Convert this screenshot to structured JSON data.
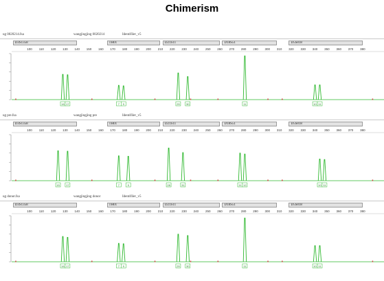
{
  "title": "Chimerism",
  "x_ticks": [
    "100",
    "110",
    "120",
    "130",
    "140",
    "150",
    "160",
    "170",
    "180",
    "190",
    "200",
    "210",
    "220",
    "230",
    "240",
    "250",
    "260",
    "270",
    "280",
    "290",
    "300",
    "310",
    "320",
    "330",
    "340",
    "350",
    "360",
    "370",
    "380"
  ],
  "markers": [
    "D3S1358",
    "TH01",
    "D21S11",
    "D18S51",
    "D5S818"
  ],
  "colors": {
    "trace": "#2eb82e",
    "marker_fill": "#e2e2e2",
    "peak_label_border": "#2eb82e"
  },
  "panels": [
    {
      "sample": "ug 0020214.fsa",
      "user": "wangjingjing 0020214",
      "panel": "Identifiler_v5",
      "peaks": [
        {
          "bp": 128,
          "height": 0.55,
          "label": "16"
        },
        {
          "bp": 132,
          "height": 0.54,
          "label": "17"
        },
        {
          "bp": 175,
          "height": 0.31,
          "label": "7"
        },
        {
          "bp": 179,
          "height": 0.3,
          "label": "9"
        },
        {
          "bp": 225,
          "height": 0.58,
          "label": "29"
        },
        {
          "bp": 233,
          "height": 0.5,
          "label": "30"
        },
        {
          "bp": 281,
          "height": 0.95,
          "label": "11"
        },
        {
          "bp": 340,
          "height": 0.32,
          "label": "10"
        },
        {
          "bp": 344,
          "height": 0.32,
          "label": "11"
        }
      ]
    },
    {
      "sample": "ug pre.fsa",
      "user": "wangjingjing pre",
      "panel": "Identifiler_v5",
      "peaks": [
        {
          "bp": 124,
          "height": 0.65,
          "label": "15"
        },
        {
          "bp": 132,
          "height": 0.64,
          "label": "17"
        },
        {
          "bp": 175,
          "height": 0.54,
          "label": "7"
        },
        {
          "bp": 183,
          "height": 0.53,
          "label": "9"
        },
        {
          "bp": 217,
          "height": 0.71,
          "label": "28"
        },
        {
          "bp": 229,
          "height": 0.61,
          "label": "31"
        },
        {
          "bp": 277,
          "height": 0.6,
          "label": "11"
        },
        {
          "bp": 281,
          "height": 0.58,
          "label": "12"
        },
        {
          "bp": 344,
          "height": 0.47,
          "label": "10"
        },
        {
          "bp": 348,
          "height": 0.46,
          "label": "11"
        }
      ]
    },
    {
      "sample": "ug donor.fsa",
      "user": "wangjingjing donor",
      "panel": "Identifiler_v5",
      "peaks": [
        {
          "bp": 128,
          "height": 0.55,
          "label": "16"
        },
        {
          "bp": 132,
          "height": 0.53,
          "label": "17"
        },
        {
          "bp": 175,
          "height": 0.4,
          "label": "7"
        },
        {
          "bp": 179,
          "height": 0.39,
          "label": "9"
        },
        {
          "bp": 225,
          "height": 0.6,
          "label": "29"
        },
        {
          "bp": 233,
          "height": 0.57,
          "label": "30"
        },
        {
          "bp": 281,
          "height": 0.95,
          "label": "11"
        },
        {
          "bp": 340,
          "height": 0.35,
          "label": "10"
        },
        {
          "bp": 344,
          "height": 0.35,
          "label": "11"
        }
      ]
    }
  ]
}
